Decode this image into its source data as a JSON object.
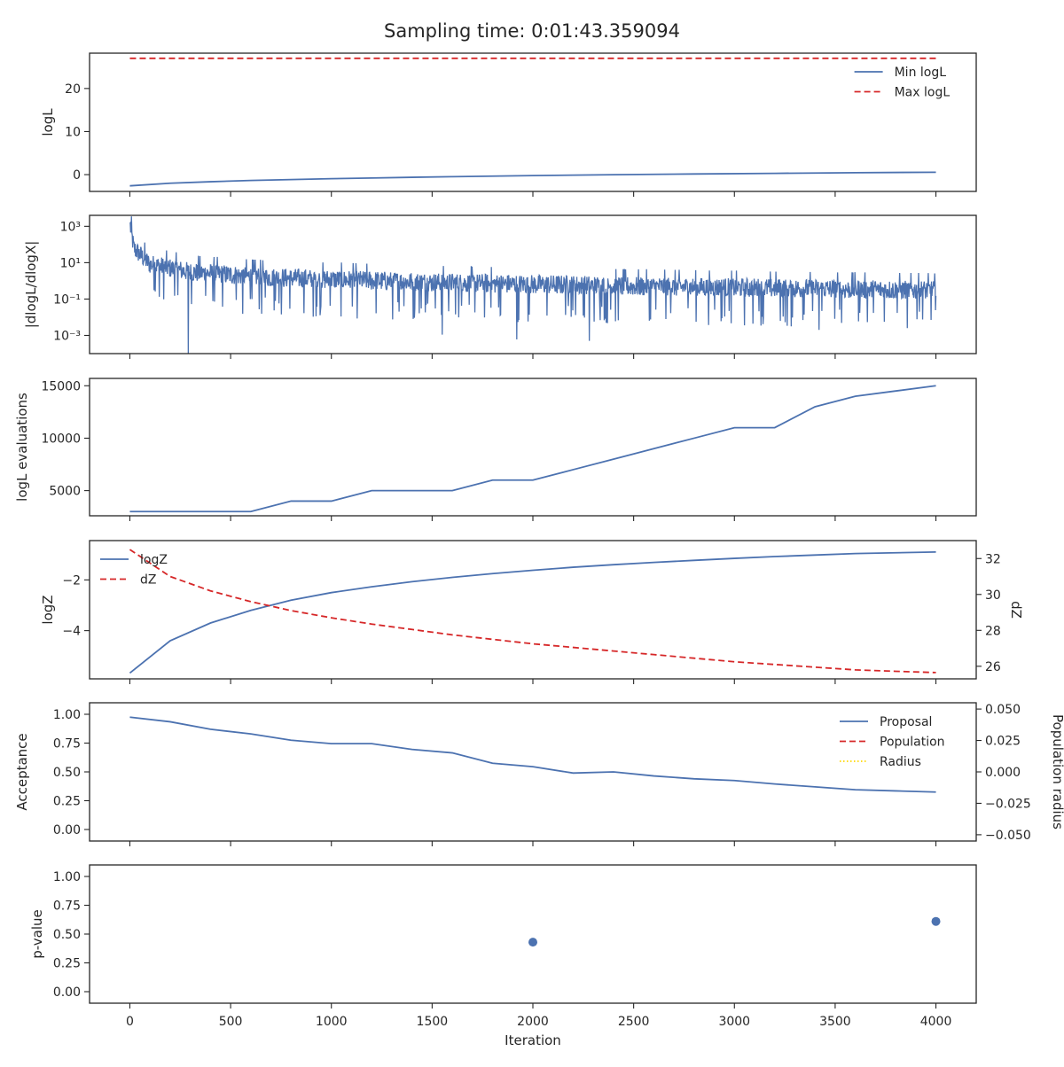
{
  "figure": {
    "title": "Sampling time: 0:01:43.359094",
    "xlabel": "Iteration",
    "xticks": [
      0,
      500,
      1000,
      1500,
      2000,
      2500,
      3000,
      3500,
      4000
    ],
    "xlim": [
      -200,
      4200
    ]
  },
  "colors": {
    "blue": "#4c72b0",
    "red": "#d62728",
    "gold": "#ffd700",
    "axis": "#262626"
  },
  "chart_data": [
    {
      "type": "line",
      "ylabel": "logL",
      "ylim": [
        -3.9,
        28.2
      ],
      "yticks": [
        0,
        10,
        20
      ],
      "grid": false,
      "legend_position": "top-right",
      "series": [
        {
          "name": "Min logL",
          "style": "solid",
          "color": "#4c72b0",
          "x": [
            0,
            200,
            400,
            600,
            800,
            1000,
            1200,
            1400,
            1600,
            1800,
            2000,
            2400,
            2800,
            3200,
            3600,
            4000
          ],
          "y": [
            -2.6,
            -2.0,
            -1.65,
            -1.35,
            -1.15,
            -0.95,
            -0.78,
            -0.62,
            -0.48,
            -0.35,
            -0.22,
            -0.02,
            0.15,
            0.3,
            0.45,
            0.55
          ]
        },
        {
          "name": "Max logL",
          "style": "dashed",
          "color": "#d62728",
          "x": [
            0,
            4000
          ],
          "y": [
            27,
            27
          ]
        }
      ]
    },
    {
      "type": "line",
      "ylabel": "|dlogL/dlogX|",
      "yscale": "log",
      "ylim": [
        0.0001,
        4000
      ],
      "yticks": [
        0.001,
        0.1,
        10,
        1000
      ],
      "ytick_labels": [
        "10⁻³",
        "10⁻¹",
        "10¹",
        "10³"
      ],
      "grid": false,
      "series": [
        {
          "name": "",
          "style": "noisy",
          "color": "#4c72b0",
          "x": [
            0,
            20,
            100,
            300,
            700,
            1500,
            2500,
            3500,
            4000
          ],
          "y": [
            1400,
            60,
            8,
            3,
            1.5,
            0.8,
            0.5,
            0.35,
            0.3
          ],
          "dips": [
            [
              290,
              7e-05
            ],
            [
              1550,
              0.0011
            ],
            [
              1920,
              0.0006
            ],
            [
              2280,
              0.0005
            ],
            [
              3420,
              0.002
            ]
          ]
        }
      ]
    },
    {
      "type": "line",
      "ylabel": "logL evaluations",
      "ylim": [
        2600,
        15700
      ],
      "yticks": [
        5000,
        10000,
        15000
      ],
      "grid": false,
      "series": [
        {
          "name": "",
          "style": "solid",
          "color": "#4c72b0",
          "x": [
            0,
            200,
            400,
            600,
            800,
            1000,
            1200,
            1400,
            1600,
            1800,
            2000,
            2200,
            2400,
            2600,
            2800,
            3000,
            3200,
            3400,
            3600,
            3800,
            4000
          ],
          "y": [
            3000,
            3000,
            3000,
            3000,
            4000,
            4000,
            5000,
            5000,
            5000,
            6000,
            6000,
            7000,
            8000,
            9000,
            10000,
            11000,
            11000,
            13000,
            14000,
            14500,
            15000
          ]
        }
      ]
    },
    {
      "type": "line",
      "ylabel": "logZ",
      "ylabel_right": "dZ",
      "ylim": [
        -5.9,
        -0.45
      ],
      "yticks": [
        -4,
        -2
      ],
      "ylim_right": [
        25.3,
        33.0
      ],
      "yticks_right": [
        26,
        28,
        30,
        32
      ],
      "grid": false,
      "legend_position": "top-left",
      "series": [
        {
          "name": "logZ",
          "style": "solid",
          "color": "#4c72b0",
          "axis": "left",
          "x": [
            0,
            200,
            400,
            600,
            800,
            1000,
            1200,
            1400,
            1600,
            1800,
            2000,
            2200,
            2400,
            2600,
            2800,
            3000,
            3200,
            3400,
            3600,
            3800,
            4000
          ],
          "y": [
            -5.67,
            -4.4,
            -3.7,
            -3.2,
            -2.8,
            -2.5,
            -2.27,
            -2.07,
            -1.9,
            -1.75,
            -1.62,
            -1.5,
            -1.4,
            -1.31,
            -1.23,
            -1.15,
            -1.08,
            -1.02,
            -0.96,
            -0.93,
            -0.9
          ]
        },
        {
          "name": "dZ",
          "style": "dashed",
          "color": "#d62728",
          "axis": "right",
          "x": [
            0,
            200,
            400,
            600,
            800,
            1000,
            1200,
            1400,
            1600,
            1800,
            2000,
            2200,
            2400,
            2600,
            2800,
            3000,
            3200,
            3400,
            3600,
            3800,
            4000
          ],
          "y": [
            32.5,
            31.0,
            30.2,
            29.6,
            29.1,
            28.7,
            28.35,
            28.05,
            27.75,
            27.5,
            27.25,
            27.05,
            26.85,
            26.65,
            26.45,
            26.25,
            26.1,
            25.95,
            25.8,
            25.72,
            25.65
          ]
        }
      ]
    },
    {
      "type": "line",
      "ylabel": "Acceptance",
      "ylabel_right": "Population radius",
      "ylim": [
        -0.1,
        1.1
      ],
      "yticks": [
        0.0,
        0.25,
        0.5,
        0.75,
        1.0
      ],
      "ytick_labels": [
        "0.00",
        "0.25",
        "0.50",
        "0.75",
        "1.00"
      ],
      "ylim_right": [
        -0.055,
        0.055
      ],
      "yticks_right": [
        -0.05,
        -0.025,
        0.0,
        0.025,
        0.05
      ],
      "ytick_labels_right": [
        "−0.050",
        "−0.025",
        "0.000",
        "0.025",
        "0.050"
      ],
      "grid": false,
      "legend_position": "top-right",
      "series": [
        {
          "name": "Proposal",
          "style": "solid",
          "color": "#4c72b0",
          "axis": "left",
          "x": [
            0,
            200,
            400,
            600,
            800,
            1000,
            1200,
            1400,
            1600,
            1800,
            2000,
            2200,
            2400,
            2600,
            2800,
            3000,
            3200,
            3400,
            3600,
            3800,
            4000
          ],
          "y": [
            0.975,
            0.935,
            0.87,
            0.83,
            0.775,
            0.745,
            0.745,
            0.695,
            0.665,
            0.575,
            0.545,
            0.49,
            0.5,
            0.465,
            0.44,
            0.425,
            0.395,
            0.37,
            0.345,
            0.335,
            0.325
          ]
        },
        {
          "name": "Population",
          "style": "dashed",
          "color": "#d62728",
          "axis": "right",
          "x": [],
          "y": []
        },
        {
          "name": "Radius",
          "style": "dotted",
          "color": "#ffd700",
          "axis": "right",
          "x": [],
          "y": []
        }
      ]
    },
    {
      "type": "scatter",
      "ylabel": "p-value",
      "ylim": [
        -0.1,
        1.1
      ],
      "yticks": [
        0.0,
        0.25,
        0.5,
        0.75,
        1.0
      ],
      "ytick_labels": [
        "0.00",
        "0.25",
        "0.50",
        "0.75",
        "1.00"
      ],
      "grid": false,
      "series": [
        {
          "name": "",
          "color": "#4c72b0",
          "x": [
            2000,
            4000
          ],
          "y": [
            0.43,
            0.61
          ]
        }
      ]
    }
  ]
}
